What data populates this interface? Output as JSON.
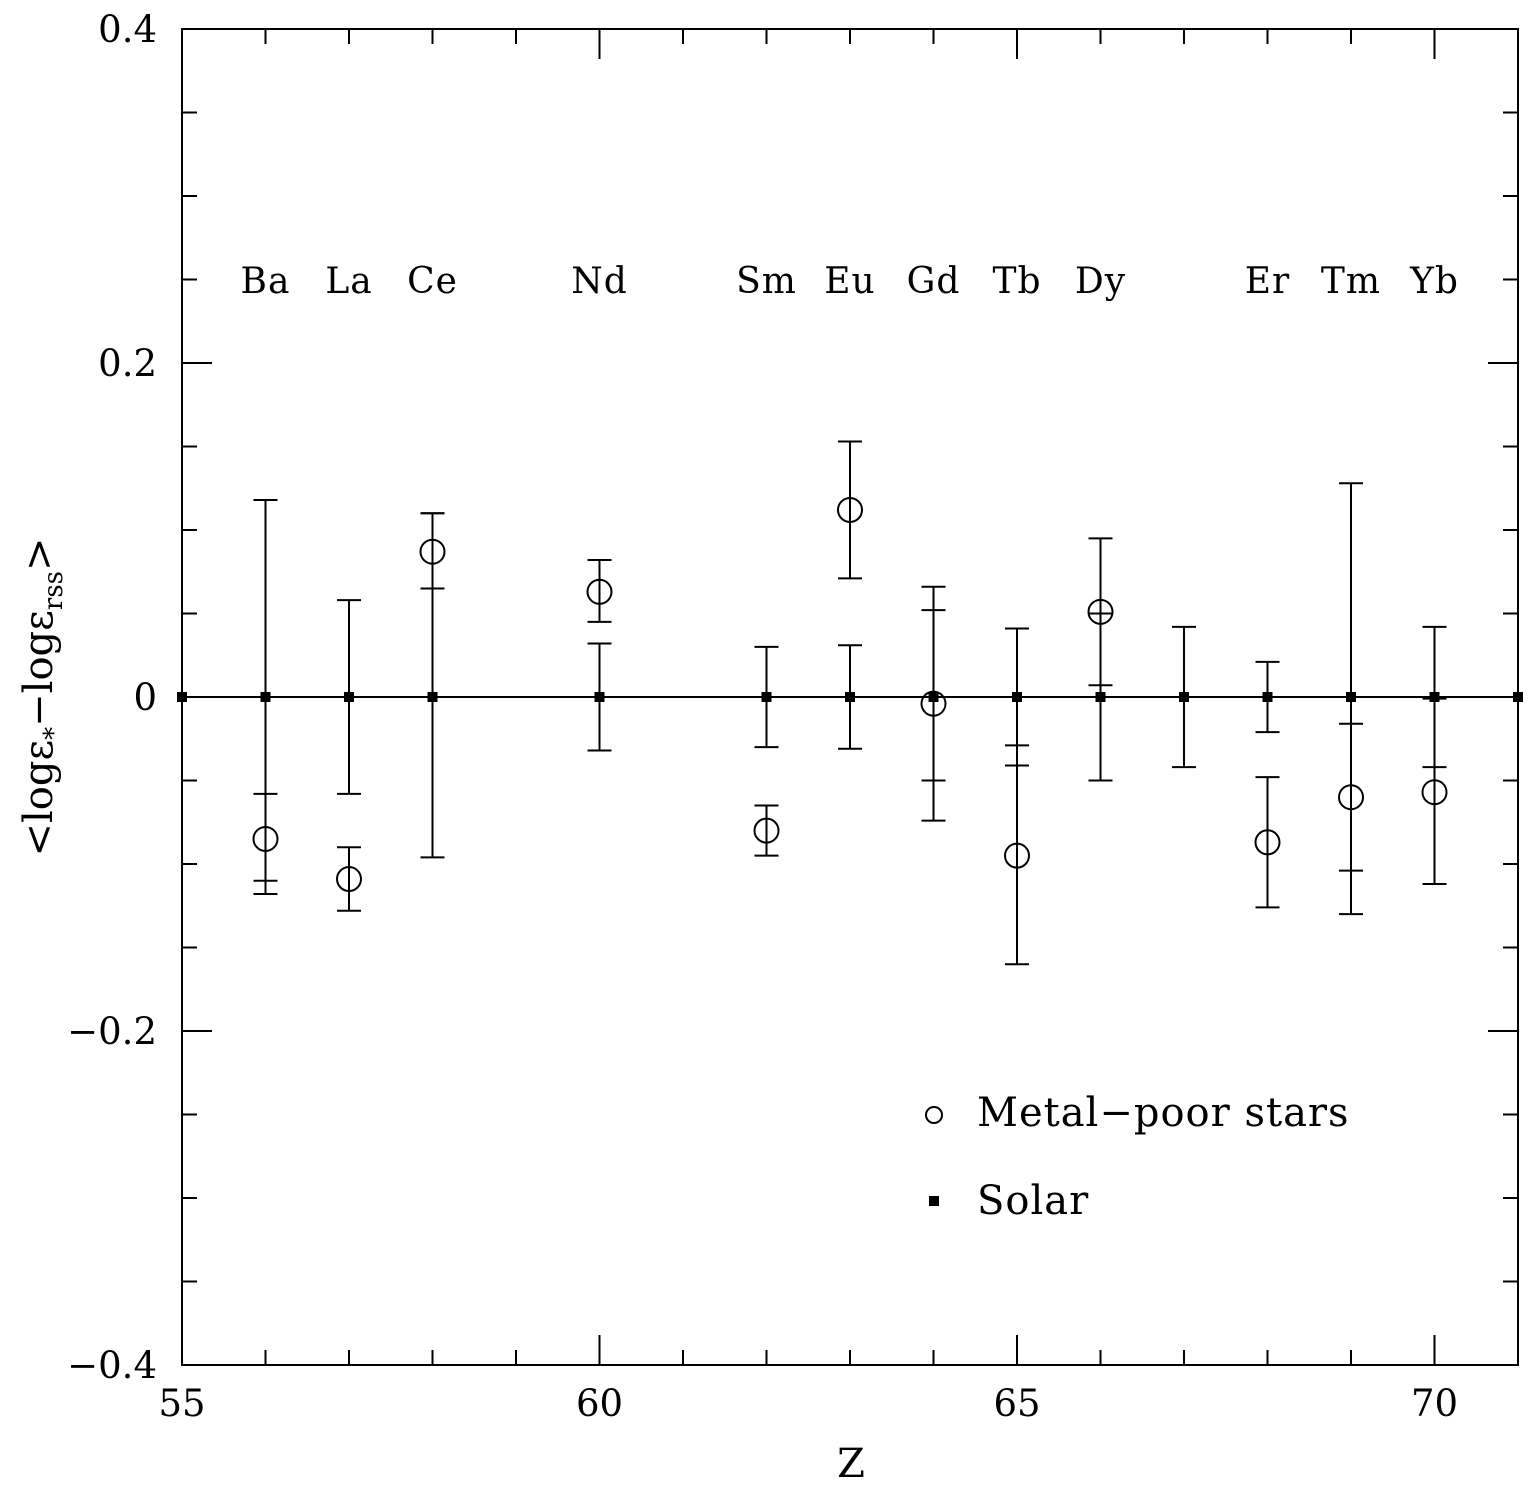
{
  "chart_data": {
    "type": "scatter",
    "xlabel": "Z",
    "ylabel_parts": {
      "open": "<",
      "log1": "log",
      "eps1": "ε",
      "sub1": "*",
      "minus": "−",
      "log2": "log",
      "eps2": "ε",
      "sub2": "rss",
      "close": ">"
    },
    "xlim": [
      55,
      71
    ],
    "ylim": [
      -0.4,
      0.4
    ],
    "x_ticks_major": [
      55,
      60,
      65,
      70
    ],
    "x_tick_labels": [
      "55",
      "60",
      "65",
      "70"
    ],
    "y_ticks_major": [
      -0.4,
      -0.2,
      0,
      0.2,
      0.4
    ],
    "y_tick_labels": [
      "−0.4",
      "−0.2",
      "0",
      "0.2",
      "0.4"
    ],
    "grid": false,
    "legend_position": "bottom-right",
    "element_labels": [
      {
        "z": 56,
        "label": "Ba"
      },
      {
        "z": 57,
        "label": "La"
      },
      {
        "z": 58,
        "label": "Ce"
      },
      {
        "z": 60,
        "label": "Nd"
      },
      {
        "z": 62,
        "label": "Sm"
      },
      {
        "z": 63,
        "label": "Eu"
      },
      {
        "z": 64,
        "label": "Gd"
      },
      {
        "z": 65,
        "label": "Tb"
      },
      {
        "z": 66,
        "label": "Dy"
      },
      {
        "z": 68,
        "label": "Er"
      },
      {
        "z": 69,
        "label": "Tm"
      },
      {
        "z": 70,
        "label": "Yb"
      }
    ],
    "series": [
      {
        "name": "Metal−poor stars",
        "marker": "open-circle",
        "points": [
          {
            "x": 56,
            "y": -0.085,
            "lo": -0.11,
            "hi": -0.058
          },
          {
            "x": 57,
            "y": -0.109,
            "lo": -0.128,
            "hi": -0.09
          },
          {
            "x": 58,
            "y": 0.087,
            "lo": 0.065,
            "hi": 0.11
          },
          {
            "x": 60,
            "y": 0.063,
            "lo": 0.045,
            "hi": 0.082
          },
          {
            "x": 62,
            "y": -0.08,
            "lo": -0.095,
            "hi": -0.065
          },
          {
            "x": 63,
            "y": 0.112,
            "lo": 0.071,
            "hi": 0.153
          },
          {
            "x": 64,
            "y": -0.004,
            "lo": -0.05,
            "hi": 0.052
          },
          {
            "x": 65,
            "y": -0.095,
            "lo": -0.16,
            "hi": -0.029
          },
          {
            "x": 66,
            "y": 0.051,
            "lo": 0.007,
            "hi": 0.095
          },
          {
            "x": 68,
            "y": -0.087,
            "lo": -0.126,
            "hi": -0.048
          },
          {
            "x": 69,
            "y": -0.06,
            "lo": -0.104,
            "hi": -0.016
          },
          {
            "x": 70,
            "y": -0.057,
            "lo": -0.112,
            "hi": -0.001
          }
        ]
      },
      {
        "name": "Solar",
        "marker": "filled-square",
        "points": [
          {
            "x": 55,
            "y": 0
          },
          {
            "x": 56,
            "y": 0,
            "lo": -0.118,
            "hi": 0.118
          },
          {
            "x": 57,
            "y": 0,
            "lo": -0.058,
            "hi": 0.058
          },
          {
            "x": 58,
            "y": 0,
            "lo": -0.096,
            "hi": 0.11
          },
          {
            "x": 60,
            "y": 0,
            "lo": -0.032,
            "hi": 0.032
          },
          {
            "x": 62,
            "y": 0,
            "lo": -0.03,
            "hi": 0.03
          },
          {
            "x": 63,
            "y": 0,
            "lo": -0.031,
            "hi": 0.031
          },
          {
            "x": 64,
            "y": 0,
            "lo": -0.074,
            "hi": 0.066
          },
          {
            "x": 65,
            "y": 0,
            "lo": -0.041,
            "hi": 0.041
          },
          {
            "x": 66,
            "y": 0,
            "lo": -0.05,
            "hi": 0.05
          },
          {
            "x": 67,
            "y": 0,
            "lo": -0.042,
            "hi": 0.042
          },
          {
            "x": 68,
            "y": 0,
            "lo": -0.021,
            "hi": 0.021
          },
          {
            "x": 69,
            "y": 0,
            "lo": -0.13,
            "hi": 0.128
          },
          {
            "x": 70,
            "y": 0,
            "lo": -0.042,
            "hi": 0.042
          },
          {
            "x": 71,
            "y": 0
          }
        ]
      }
    ]
  }
}
